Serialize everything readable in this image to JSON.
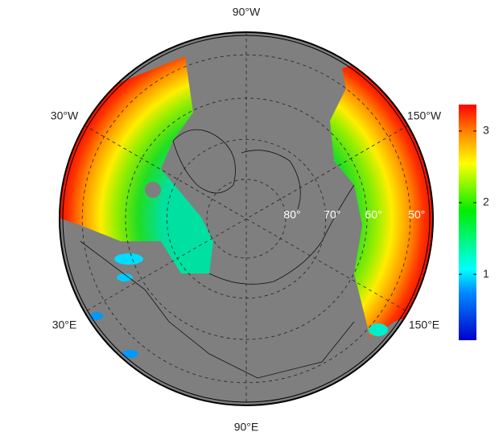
{
  "map": {
    "longitude_labels": [
      "90°W",
      "30°W",
      "150°W",
      "30°E",
      "150°E",
      "90°E"
    ],
    "latitude_labels": [
      {
        "value": 80,
        "label": "80°"
      },
      {
        "value": 70,
        "label": "70°"
      },
      {
        "value": 60,
        "label": "60°"
      },
      {
        "value": 50,
        "label": "50°"
      }
    ],
    "colorbar": {
      "lim": [
        0.08,
        3.37
      ],
      "ticks": [
        1,
        2,
        3
      ]
    }
  }
}
